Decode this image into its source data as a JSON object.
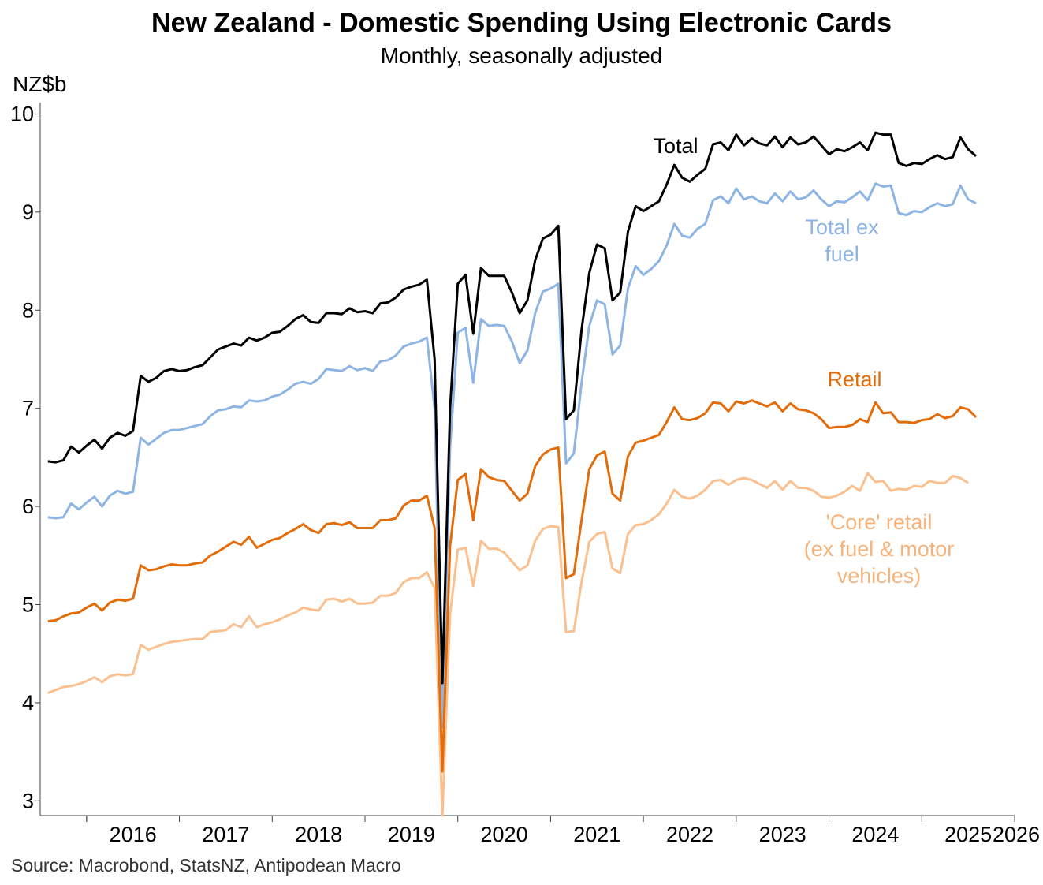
{
  "chart_data": {
    "type": "line",
    "title": "New Zealand - Domestic Spending Using Electronic Cards",
    "subtitle": "Monthly, seasonally adjusted",
    "ylabel": "NZ$b",
    "source": "Source: Macrobond, StatsNZ, Antipodean Macro",
    "ylim": [
      2.85,
      10.1
    ],
    "yticks": [
      3,
      4,
      5,
      6,
      7,
      8,
      9,
      10
    ],
    "x_start": "2015-08",
    "x_range": [
      "2015-07",
      "2026-01"
    ],
    "xtick_labels": [
      "2016",
      "2017",
      "2018",
      "2019",
      "2020",
      "2021",
      "2022",
      "2023",
      "2024",
      "2025",
      "2026"
    ],
    "series": [
      {
        "name": "Total",
        "color": "#000000",
        "values": [
          6.46,
          6.45,
          6.47,
          6.61,
          6.55,
          6.62,
          6.68,
          6.59,
          6.7,
          6.75,
          6.72,
          6.77,
          7.33,
          7.27,
          7.31,
          7.38,
          7.4,
          7.38,
          7.39,
          7.42,
          7.44,
          7.52,
          7.6,
          7.63,
          7.66,
          7.64,
          7.72,
          7.69,
          7.72,
          7.77,
          7.78,
          7.84,
          7.91,
          7.95,
          7.88,
          7.87,
          7.97,
          7.97,
          7.96,
          8.02,
          7.98,
          7.99,
          7.97,
          8.07,
          8.08,
          8.13,
          8.21,
          8.24,
          8.26,
          8.31,
          7.5,
          4.2,
          7.0,
          8.27,
          8.36,
          7.76,
          8.43,
          8.35,
          8.35,
          8.35,
          8.18,
          7.97,
          8.1,
          8.51,
          8.73,
          8.77,
          8.86,
          6.89,
          6.98,
          7.8,
          8.38,
          8.67,
          8.63,
          8.1,
          8.18,
          8.8,
          9.06,
          9.01,
          9.06,
          9.11,
          9.28,
          9.48,
          9.35,
          9.31,
          9.38,
          9.44,
          9.69,
          9.71,
          9.63,
          9.79,
          9.68,
          9.75,
          9.7,
          9.68,
          9.77,
          9.66,
          9.76,
          9.69,
          9.71,
          9.77,
          9.68,
          9.59,
          9.64,
          9.62,
          9.66,
          9.71,
          9.63,
          9.81,
          9.79,
          9.79,
          9.5,
          9.47,
          9.5,
          9.49,
          9.54,
          9.58,
          9.54,
          9.56,
          9.76,
          9.64,
          9.57
        ]
      },
      {
        "name": "Total ex fuel",
        "color": "#8EB4E3",
        "values": [
          5.89,
          5.88,
          5.89,
          6.03,
          5.97,
          6.04,
          6.1,
          6.0,
          6.11,
          6.16,
          6.13,
          6.15,
          6.7,
          6.63,
          6.69,
          6.75,
          6.78,
          6.78,
          6.8,
          6.82,
          6.84,
          6.92,
          6.98,
          6.99,
          7.02,
          7.01,
          7.08,
          7.07,
          7.08,
          7.12,
          7.14,
          7.19,
          7.25,
          7.27,
          7.25,
          7.3,
          7.4,
          7.39,
          7.38,
          7.43,
          7.39,
          7.41,
          7.38,
          7.48,
          7.49,
          7.54,
          7.63,
          7.66,
          7.68,
          7.72,
          7.0,
          3.75,
          6.6,
          7.77,
          7.82,
          7.26,
          7.91,
          7.84,
          7.85,
          7.84,
          7.68,
          7.46,
          7.59,
          7.97,
          8.19,
          8.22,
          8.27,
          6.44,
          6.54,
          7.26,
          7.84,
          8.1,
          8.06,
          7.55,
          7.64,
          8.22,
          8.45,
          8.36,
          8.42,
          8.5,
          8.66,
          8.88,
          8.76,
          8.74,
          8.83,
          8.88,
          9.12,
          9.16,
          9.09,
          9.24,
          9.13,
          9.16,
          9.11,
          9.09,
          9.19,
          9.11,
          9.21,
          9.13,
          9.15,
          9.22,
          9.13,
          9.06,
          9.11,
          9.1,
          9.15,
          9.21,
          9.12,
          9.29,
          9.26,
          9.27,
          8.99,
          8.97,
          9.01,
          9.0,
          9.05,
          9.09,
          9.06,
          9.08,
          9.27,
          9.13,
          9.09
        ]
      },
      {
        "name": "Retail",
        "color": "#E36C0A",
        "values": [
          4.83,
          4.84,
          4.88,
          4.91,
          4.92,
          4.97,
          5.01,
          4.94,
          5.02,
          5.05,
          5.04,
          5.06,
          5.4,
          5.35,
          5.36,
          5.39,
          5.41,
          5.4,
          5.4,
          5.42,
          5.43,
          5.5,
          5.54,
          5.59,
          5.64,
          5.61,
          5.69,
          5.58,
          5.62,
          5.66,
          5.68,
          5.73,
          5.77,
          5.82,
          5.76,
          5.73,
          5.82,
          5.83,
          5.81,
          5.84,
          5.78,
          5.78,
          5.78,
          5.86,
          5.86,
          5.88,
          6.01,
          6.06,
          6.06,
          6.11,
          5.78,
          3.3,
          5.6,
          6.27,
          6.33,
          5.86,
          6.38,
          6.3,
          6.27,
          6.26,
          6.16,
          6.06,
          6.13,
          6.41,
          6.53,
          6.58,
          6.6,
          5.27,
          5.31,
          5.86,
          6.38,
          6.52,
          6.56,
          6.13,
          6.06,
          6.51,
          6.65,
          6.67,
          6.7,
          6.73,
          6.86,
          7.01,
          6.89,
          6.88,
          6.9,
          6.95,
          7.06,
          7.05,
          6.97,
          7.07,
          7.05,
          7.08,
          7.05,
          7.02,
          7.06,
          6.97,
          7.05,
          6.99,
          6.98,
          6.95,
          6.89,
          6.8,
          6.81,
          6.81,
          6.83,
          6.89,
          6.86,
          7.06,
          6.95,
          6.96,
          6.86,
          6.86,
          6.85,
          6.88,
          6.89,
          6.94,
          6.9,
          6.92,
          7.01,
          6.99,
          6.91
        ]
      },
      {
        "name": "'Core' retail (ex fuel & motor vehicles)",
        "color": "#FAC090",
        "values": [
          4.1,
          4.13,
          4.16,
          4.17,
          4.19,
          4.22,
          4.26,
          4.21,
          4.27,
          4.29,
          4.28,
          4.29,
          4.59,
          4.54,
          4.57,
          4.6,
          4.62,
          4.63,
          4.64,
          4.65,
          4.65,
          4.72,
          4.73,
          4.74,
          4.8,
          4.77,
          4.88,
          4.77,
          4.8,
          4.82,
          4.85,
          4.89,
          4.92,
          4.97,
          4.95,
          4.94,
          5.05,
          5.06,
          5.03,
          5.06,
          5.01,
          5.01,
          5.02,
          5.09,
          5.09,
          5.12,
          5.23,
          5.27,
          5.27,
          5.33,
          5.17,
          2.85,
          4.9,
          5.56,
          5.58,
          5.19,
          5.65,
          5.57,
          5.57,
          5.53,
          5.44,
          5.35,
          5.4,
          5.65,
          5.77,
          5.8,
          5.79,
          4.72,
          4.73,
          5.23,
          5.64,
          5.72,
          5.74,
          5.37,
          5.32,
          5.72,
          5.81,
          5.82,
          5.86,
          5.92,
          6.03,
          6.17,
          6.1,
          6.08,
          6.11,
          6.17,
          6.26,
          6.27,
          6.22,
          6.27,
          6.29,
          6.27,
          6.23,
          6.19,
          6.26,
          6.17,
          6.26,
          6.19,
          6.19,
          6.16,
          6.1,
          6.09,
          6.11,
          6.15,
          6.21,
          6.16,
          6.34,
          6.25,
          6.26,
          6.16,
          6.18,
          6.17,
          6.21,
          6.2,
          6.26,
          6.24,
          6.24,
          6.31,
          6.29,
          6.24
        ]
      }
    ],
    "annotations": {
      "total": [
        "Total"
      ],
      "total_ex_fuel": [
        "Total ex",
        "fuel"
      ],
      "retail": [
        "Retail"
      ],
      "core_retail": [
        "'Core' retail",
        "(ex fuel & motor",
        "vehicles)"
      ]
    },
    "grid": false,
    "legend": "inline labels"
  }
}
